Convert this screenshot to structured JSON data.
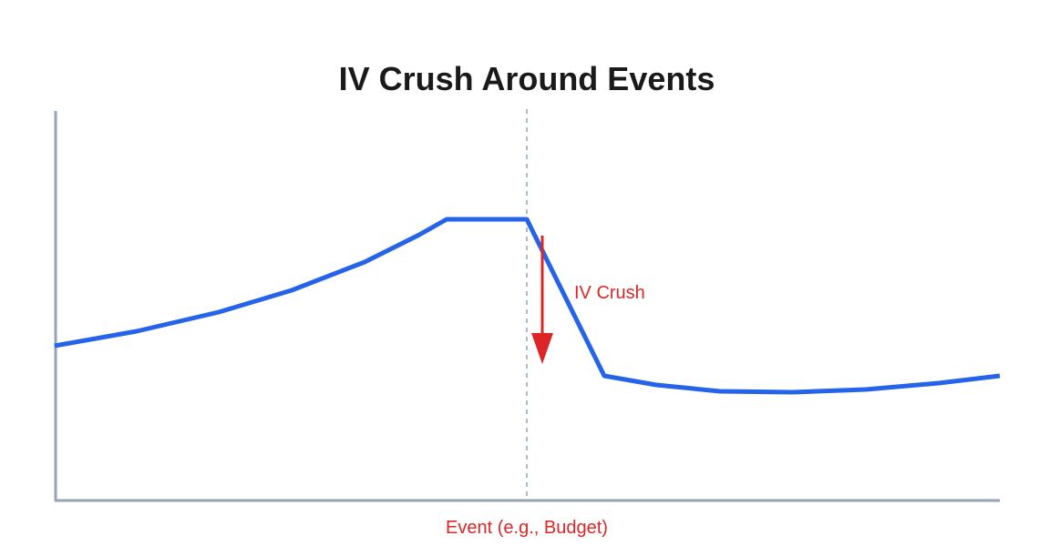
{
  "title": "IV Crush Around Events",
  "annotation": "IV Crush",
  "event_label": "Event (e.g., Budget)",
  "colors": {
    "line": "#2563eb",
    "annotation": "#dc2626",
    "axis": "#94a3b8",
    "event_line": "#94a3b8"
  }
}
